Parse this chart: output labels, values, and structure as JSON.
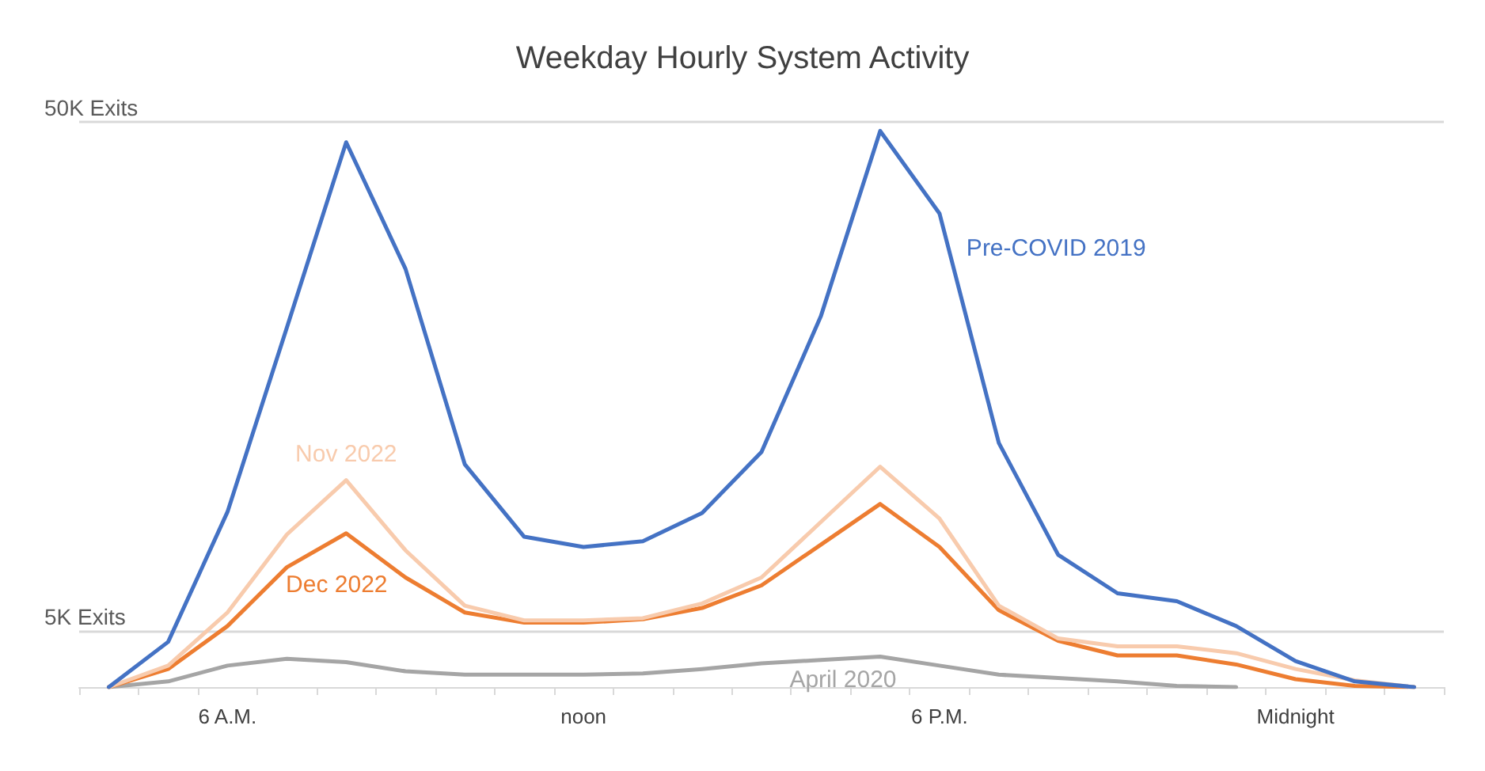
{
  "chart_data": {
    "type": "line",
    "title": "Weekday Hourly System Activity",
    "categories": [
      null,
      null,
      "6 A.M.",
      null,
      null,
      null,
      null,
      null,
      "noon",
      null,
      null,
      null,
      null,
      null,
      "6 P.M.",
      null,
      null,
      null,
      null,
      null,
      "Midnight",
      null,
      null
    ],
    "series": [
      {
        "name": "Pre-COVID 2019",
        "color": "#4472c4",
        "values": [
          0,
          4.0,
          15.5,
          31.8,
          48.2,
          37.0,
          19.7,
          13.3,
          12.4,
          12.9,
          15.4,
          20.8,
          32.8,
          49.2,
          41.9,
          21.6,
          11.7,
          8.3,
          7.6,
          5.4,
          2.3,
          0.5,
          0
        ]
      },
      {
        "name": "Nov 2022",
        "color": "#f8cbad",
        "values": [
          0,
          1.9,
          6.6,
          13.5,
          18.3,
          12.1,
          7.2,
          5.9,
          5.9,
          6.1,
          7.4,
          9.7,
          14.6,
          19.5,
          14.9,
          7.2,
          4.3,
          3.6,
          3.6,
          3.0,
          1.6,
          0.6,
          0
        ]
      },
      {
        "name": "Dec 2022",
        "color": "#ed7d31",
        "values": [
          0,
          1.6,
          5.4,
          10.6,
          13.6,
          9.7,
          6.6,
          5.7,
          5.7,
          6.0,
          7.0,
          9.0,
          12.6,
          16.2,
          12.4,
          6.8,
          4.1,
          2.8,
          2.8,
          2.0,
          0.7,
          0.1,
          0
        ]
      },
      {
        "name": "April 2020",
        "color": "#a5a5a5",
        "values": [
          0,
          0.5,
          1.9,
          2.5,
          2.2,
          1.4,
          1.1,
          1.1,
          1.1,
          1.2,
          1.6,
          2.1,
          2.4,
          2.7,
          1.9,
          1.1,
          0.8,
          0.5,
          0.1,
          0,
          null,
          null,
          null
        ]
      }
    ],
    "ylim": [
      0,
      50
    ],
    "yticks": [
      {
        "value": 5,
        "label": "5K Exits"
      },
      {
        "value": 50,
        "label": "50K Exits"
      }
    ],
    "grid": "y",
    "legend": false,
    "marker": "none",
    "line_style": "solid"
  }
}
